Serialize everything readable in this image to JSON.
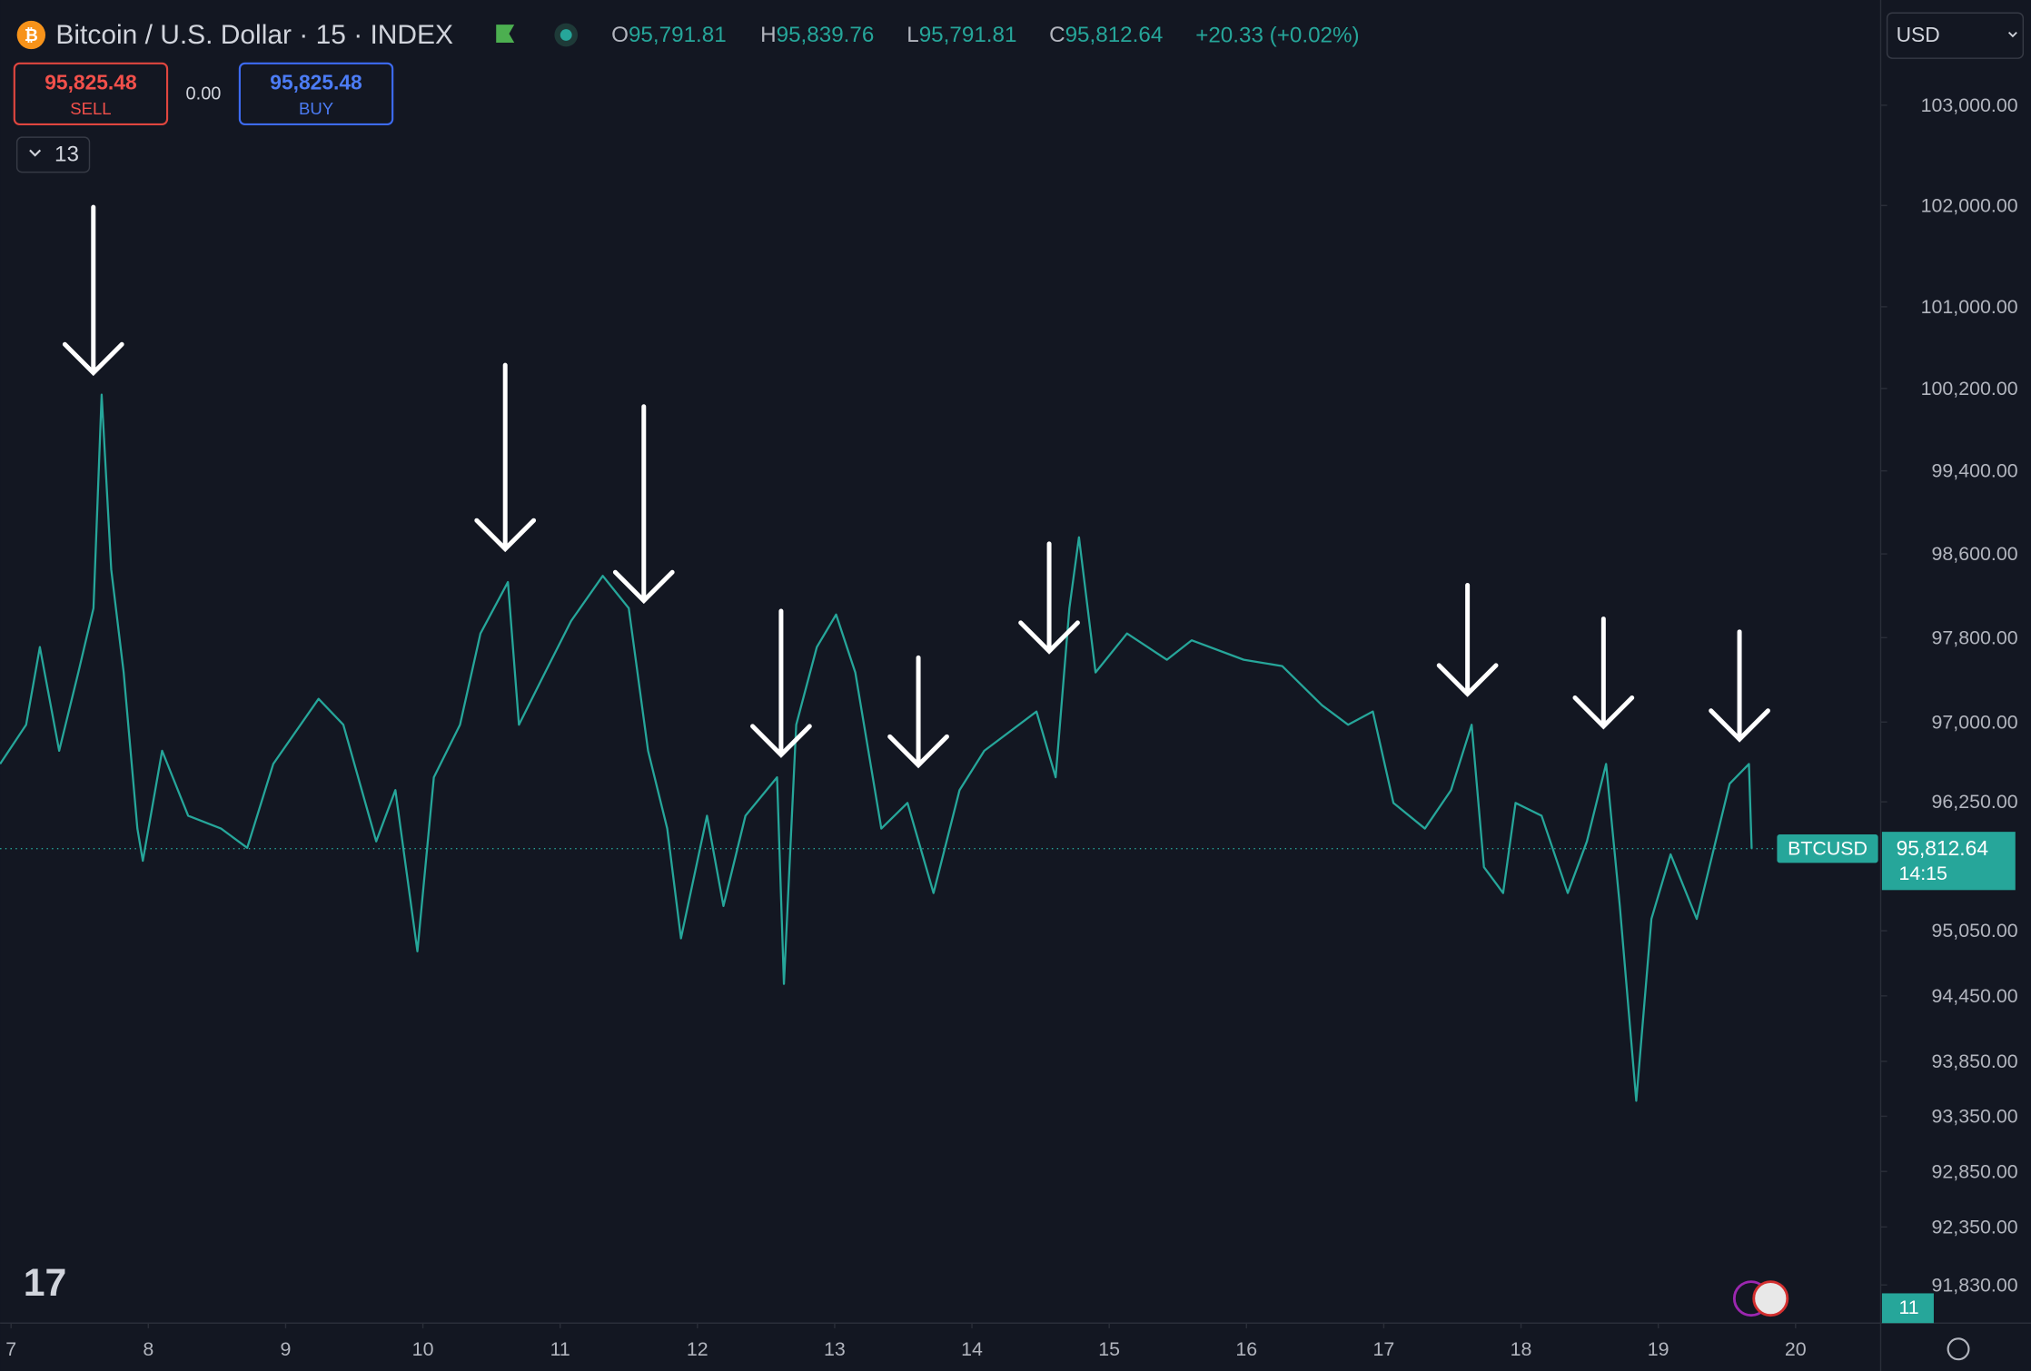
{
  "header": {
    "symbol": "Bitcoin / U.S. Dollar · 15 · INDEX",
    "ohlc": [
      {
        "key": "O",
        "value": "95,791.81"
      },
      {
        "key": "H",
        "value": "95,839.76"
      },
      {
        "key": "L",
        "value": "95,791.81"
      },
      {
        "key": "C",
        "value": "95,812.64"
      }
    ],
    "change": "+20.33 (+0.02%)"
  },
  "trade": {
    "sell_price": "95,825.48",
    "sell": "SELL",
    "spread": "0.00",
    "buy_price": "95,825.48",
    "buy": "BUY"
  },
  "indicators_count": "13",
  "currency": "USD",
  "price_label": {
    "symbol": "BTCUSD",
    "countdown": "14:15"
  },
  "volume_label": "11",
  "chart_data": {
    "type": "line",
    "log_scale": true,
    "x": [
      6.92,
      7.11,
      7.21,
      7.35,
      7.49,
      7.6,
      7.66,
      7.73,
      7.82,
      7.92,
      7.96,
      8.1,
      8.29,
      8.53,
      8.72,
      8.91,
      9.24,
      9.42,
      9.66,
      9.8,
      9.96,
      10.08,
      10.27,
      10.42,
      10.62,
      10.7,
      10.89,
      11.08,
      11.31,
      11.5,
      11.64,
      11.78,
      11.88,
      12.07,
      12.19,
      12.35,
      12.58,
      12.63,
      12.72,
      12.87,
      13.01,
      13.15,
      13.34,
      13.53,
      13.72,
      13.91,
      14.09,
      14.47,
      14.61,
      14.71,
      14.78,
      14.9,
      15.13,
      15.42,
      15.6,
      15.98,
      16.26,
      16.55,
      16.74,
      16.92,
      17.07,
      17.3,
      17.49,
      17.64,
      17.73,
      17.87,
      17.96,
      18.15,
      18.34,
      18.48,
      18.62,
      18.72,
      18.84,
      18.95,
      19.09,
      19.28,
      19.52,
      19.66,
      19.68
    ],
    "series": [
      {
        "name": "BTCUSD",
        "color": "#26a69a",
        "values": [
          96605,
          96975,
          97710,
          96730,
          97470,
          98080,
          100140,
          98450,
          97470,
          96000,
          95700,
          96730,
          96120,
          96000,
          95820,
          96605,
          97220,
          96975,
          95880,
          96360,
          94860,
          96480,
          96975,
          97840,
          98330,
          96975,
          97470,
          97960,
          98390,
          98080,
          96730,
          96000,
          94980,
          96120,
          95280,
          96120,
          96480,
          94560,
          96975,
          97710,
          98020,
          97470,
          96000,
          96240,
          95400,
          96360,
          96730,
          97100,
          96480,
          98080,
          98760,
          97470,
          97840,
          97590,
          97775,
          97590,
          97530,
          97160,
          96975,
          97100,
          96240,
          96000,
          96360,
          96975,
          95640,
          95400,
          96240,
          96120,
          95400,
          95880,
          96605,
          95280,
          93490,
          95160,
          95760,
          95160,
          96420,
          96605,
          95812.64
        ]
      }
    ],
    "current_price": {
      "value": 95812.64,
      "label": "95,812.64"
    },
    "xlim": [
      6.92,
      20.62
    ],
    "xticks": [
      7,
      8,
      9,
      10,
      11,
      12,
      13,
      14,
      15,
      16,
      17,
      18,
      19,
      20
    ],
    "ylim": [
      91490,
      104060
    ],
    "yticks": [
      {
        "value": 103000,
        "label": "103,000.00"
      },
      {
        "value": 102000,
        "label": "102,000.00"
      },
      {
        "value": 101000,
        "label": "101,000.00"
      },
      {
        "value": 100200,
        "label": "100,200.00"
      },
      {
        "value": 99400,
        "label": "99,400.00"
      },
      {
        "value": 98600,
        "label": "98,600.00"
      },
      {
        "value": 97800,
        "label": "97,800.00"
      },
      {
        "value": 97000,
        "label": "97,000.00"
      },
      {
        "value": 96250,
        "label": "96,250.00"
      },
      {
        "value": 95050,
        "label": "95,050.00"
      },
      {
        "value": 94450,
        "label": "94,450.00"
      },
      {
        "value": 93850,
        "label": "93,850.00"
      },
      {
        "value": 93350,
        "label": "93,350.00"
      },
      {
        "value": 92850,
        "label": "92,850.00"
      },
      {
        "value": 92350,
        "label": "92,350.00"
      },
      {
        "value": 91830,
        "label": "91,830.00"
      }
    ]
  }
}
